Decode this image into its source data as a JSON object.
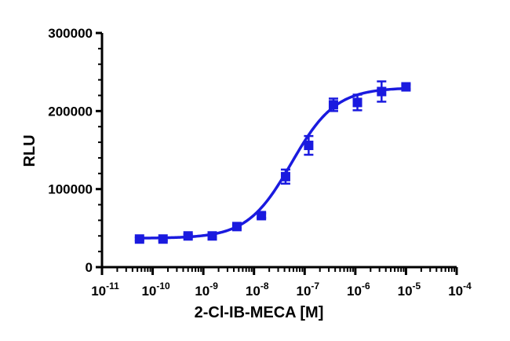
{
  "chart_data": {
    "type": "scatter",
    "title": "",
    "xlabel": "2-Cl-IB-MECA [M]",
    "ylabel": "RLU",
    "x_scale": "log",
    "xlim": [
      1e-11,
      0.0001
    ],
    "ylim": [
      0,
      300000
    ],
    "x_ticks": [
      {
        "base": "10",
        "exp": "-11"
      },
      {
        "base": "10",
        "exp": "-10"
      },
      {
        "base": "10",
        "exp": "-9"
      },
      {
        "base": "10",
        "exp": "-8"
      },
      {
        "base": "10",
        "exp": "-7"
      },
      {
        "base": "10",
        "exp": "-6"
      },
      {
        "base": "10",
        "exp": "-5"
      },
      {
        "base": "10",
        "exp": "-4"
      }
    ],
    "y_ticks": [
      "0",
      "100000",
      "200000",
      "300000"
    ],
    "y_tick_values": [
      0,
      100000,
      200000,
      300000
    ],
    "grid": false,
    "legend": "none",
    "color": "#1a1adf",
    "marker": "square",
    "series": [
      {
        "x": [
          5.5e-11,
          1.6e-10,
          5e-10,
          1.5e-09,
          4.6e-09,
          1.4e-08,
          4.2e-08,
          1.2e-07,
          3.7e-07,
          1.1e-06,
          3.3e-06,
          1e-05
        ],
        "y": [
          36000,
          36000,
          40000,
          40000,
          52000,
          66000,
          116000,
          156000,
          208000,
          211000,
          225000,
          231000
        ],
        "err": [
          2000,
          2000,
          2000,
          2000,
          2000,
          3000,
          9000,
          12000,
          8000,
          10000,
          13000,
          3000
        ]
      }
    ],
    "fit": {
      "model": "four-parameter logistic",
      "bottom": 37000,
      "top": 230000,
      "ec50": 5.5e-08,
      "hill": 1.0
    }
  }
}
